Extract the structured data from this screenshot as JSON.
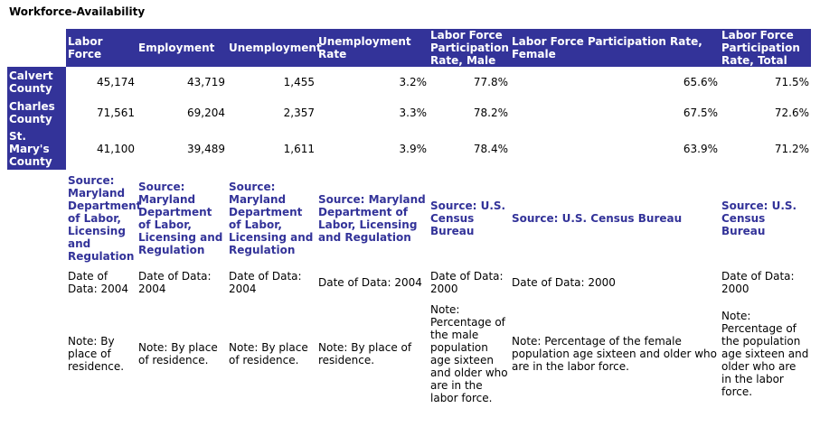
{
  "title": "Workforce-Availability",
  "columns": [
    "Labor Force",
    "Employment",
    "Unemployment",
    "Unemployment Rate",
    "Labor Force Participation Rate, Male",
    "Labor Force Participation Rate, Female",
    "Labor Force Participation Rate, Total"
  ],
  "rows": [
    {
      "name": "Calvert County",
      "values": [
        "45,174",
        "43,719",
        "1,455",
        "3.2%",
        "77.8%",
        "65.6%",
        "71.5%"
      ]
    },
    {
      "name": "Charles County",
      "values": [
        "71,561",
        "69,204",
        "2,357",
        "3.3%",
        "78.2%",
        "67.5%",
        "72.6%"
      ]
    },
    {
      "name": "St. Mary's County",
      "values": [
        "41,100",
        "39,489",
        "1,611",
        "3.9%",
        "78.4%",
        "63.9%",
        "71.2%"
      ]
    }
  ],
  "sources": [
    "Source: Maryland Department of Labor, Licensing and Regulation",
    "Source: Maryland Department of Labor, Licensing and Regulation",
    "Source: Maryland Department of Labor, Licensing and Regulation",
    "Source: Maryland Department of Labor, Licensing and Regulation",
    "Source: U.S. Census Bureau",
    "Source: U.S. Census Bureau",
    "Source: U.S. Census Bureau"
  ],
  "dates": [
    "Date of Data: 2004",
    "Date of Data: 2004",
    "Date of Data: 2004",
    "Date of Data: 2004",
    "Date of Data: 2000",
    "Date of Data: 2000",
    "Date of Data: 2000"
  ],
  "notes": [
    "Note: By place of residence.",
    "Note: By place of residence.",
    "Note: By place of residence.",
    "Note: By place of residence.",
    "Note: Percentage of the male population age sixteen and older who are in the labor force.",
    "Note: Percentage of the female population age sixteen and older who are in the labor force.",
    "Note: Percentage of the population age sixteen and older who are in the labor force."
  ],
  "colors": {
    "header_bg": "#333399",
    "header_text": "#ffffff",
    "source_text": "#333399"
  }
}
